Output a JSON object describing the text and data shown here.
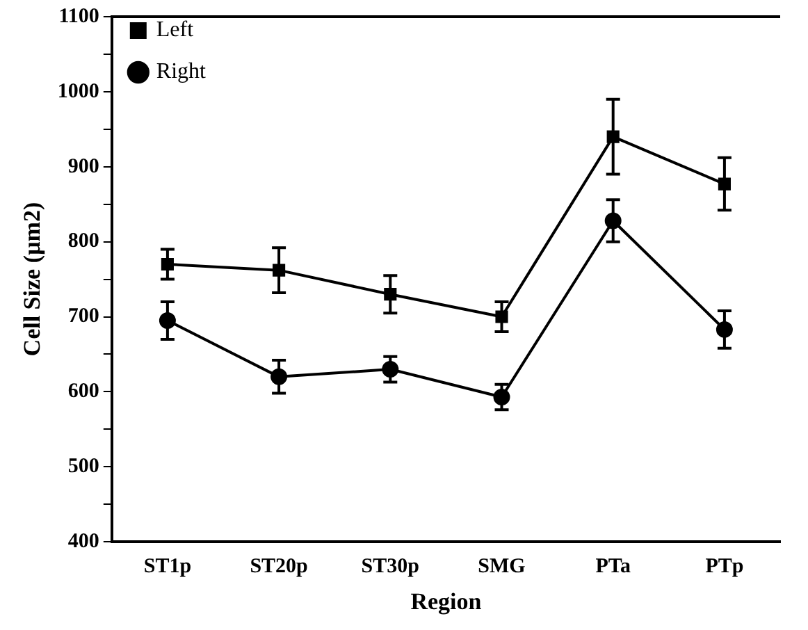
{
  "chart_data": {
    "type": "line",
    "xlabel": "Region",
    "ylabel": "Cell Size (µm2)",
    "categories": [
      "ST1p",
      "ST20p",
      "ST30p",
      "SMG",
      "PTa",
      "PTp"
    ],
    "series": [
      {
        "name": "Left",
        "color": "#000000",
        "marker": "square",
        "values": [
          770,
          762,
          730,
          700,
          940,
          877
        ],
        "errors": [
          20,
          30,
          25,
          20,
          50,
          35
        ]
      },
      {
        "name": "Right",
        "color": "#000000",
        "marker": "circle",
        "values": [
          695,
          620,
          630,
          593,
          828,
          683
        ],
        "errors": [
          25,
          22,
          17,
          17,
          28,
          25
        ]
      }
    ],
    "ylim": [
      400,
      1100
    ],
    "yticks": [
      400,
      {
        "value": 450,
        "label": null
      },
      500,
      {
        "value": 550,
        "label": null
      },
      600,
      {
        "value": 650,
        "label": null
      },
      700,
      {
        "value": 750,
        "label": null
      },
      800,
      {
        "value": 850,
        "label": null
      },
      900,
      {
        "value": 950,
        "label": null
      },
      1000,
      {
        "value": 1050,
        "label": null
      },
      1100
    ],
    "grid": false,
    "legend": "top left",
    "line_style": "solid"
  }
}
